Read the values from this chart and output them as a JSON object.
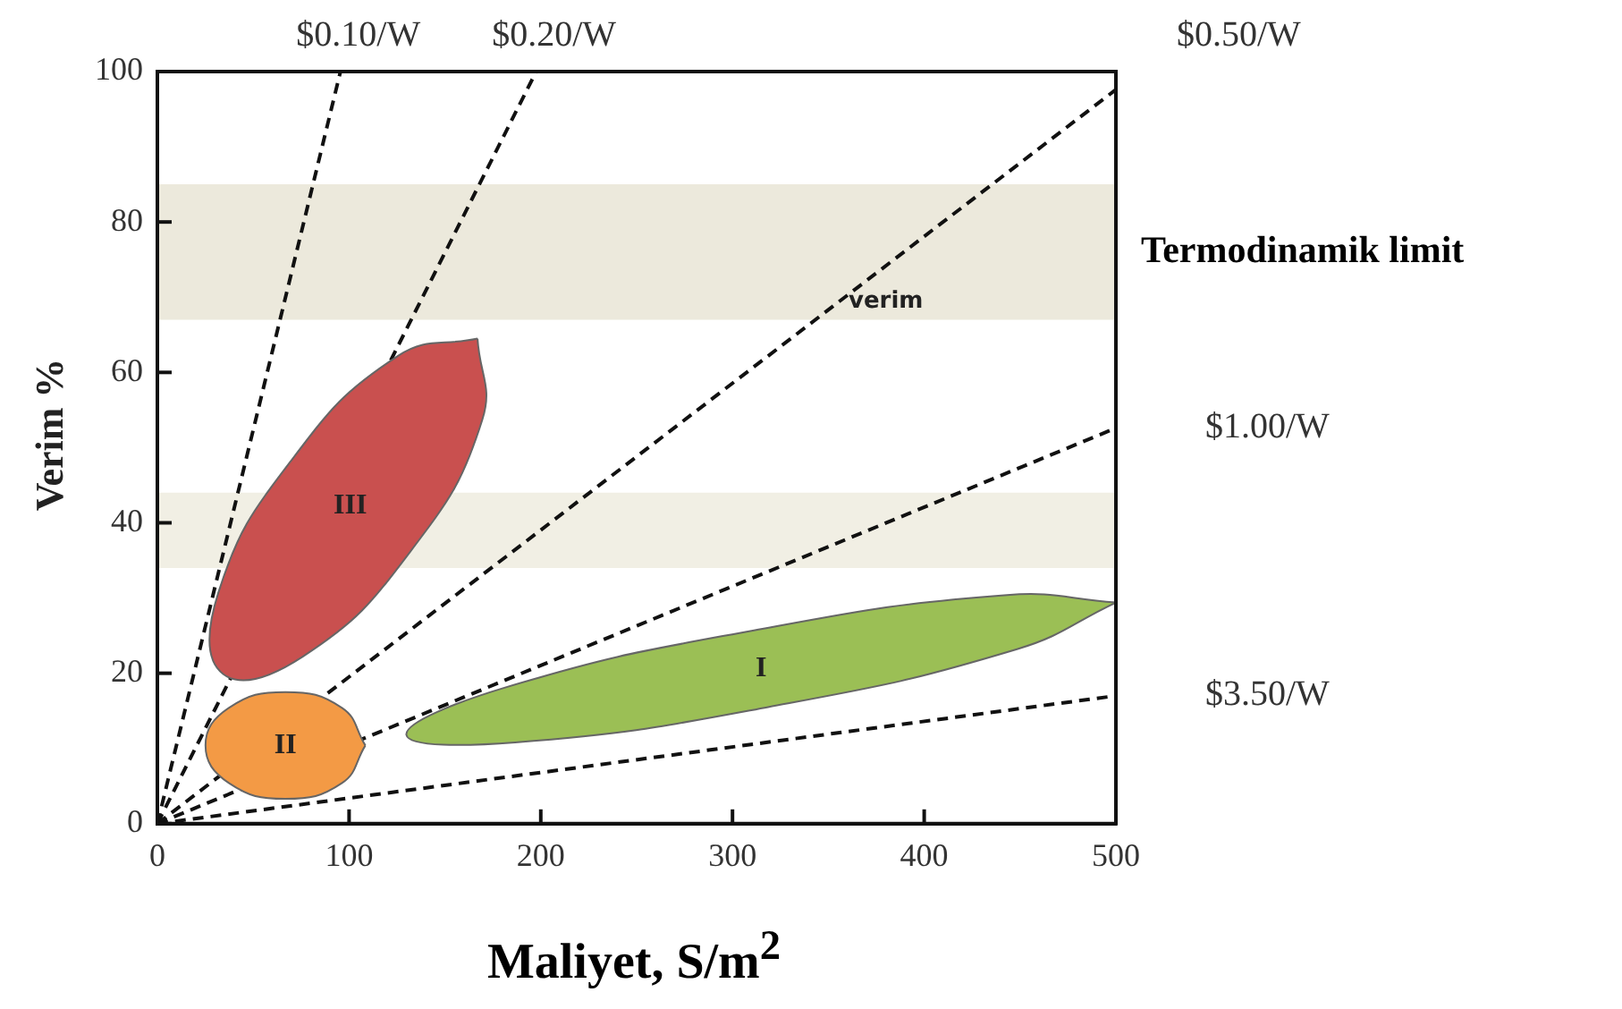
{
  "chart_data": {
    "type": "line",
    "xlabel": "Maliyet, S/m$^{2}$",
    "ylabel": "Verim %",
    "xlim": [
      0,
      500
    ],
    "ylim": [
      0,
      100
    ],
    "xticks": [
      0,
      100,
      200,
      300,
      400,
      500
    ],
    "yticks": [
      0,
      20,
      40,
      60,
      80,
      100
    ],
    "grid": false,
    "legend": false,
    "marker": "none",
    "bands": [
      {
        "axis": "y",
        "from": 67,
        "to": 85,
        "label": "Termodinamik limit",
        "color": "#ece9dc"
      },
      {
        "axis": "y",
        "from": 34,
        "to": 44,
        "label": null,
        "color": "#f1efe4"
      }
    ],
    "annotations": [
      "verim"
    ],
    "series": [
      {
        "name": "III",
        "type": "area",
        "color": "#c9504f",
        "x": [
          167,
          169.5,
          131.7,
          75.8,
          34.3,
          31.8,
          69.6,
          125.5,
          167
        ],
        "values": [
          64.5,
          53.7,
          36.1,
          22.2,
          19.9,
          30.7,
          48.2,
          62.2,
          64.5
        ]
      },
      {
        "name": "II",
        "type": "area",
        "color": "#f39a45",
        "x": [
          108.5,
          96.3,
          66.8,
          37.3,
          25.1,
          37.3,
          66.8,
          96.3,
          108.5
        ],
        "values": [
          10.4,
          15.4,
          17.5,
          15.4,
          10.4,
          5.4,
          3.3,
          5.4,
          10.4
        ]
      },
      {
        "name": "I",
        "type": "area",
        "color": "#9bbf55",
        "x": [
          500,
          448.4,
          318.6,
          186.6,
          129.9,
          181.4,
          311.2,
          443.2,
          500
        ],
        "values": [
          29.4,
          23.2,
          15.5,
          10.8,
          11.8,
          18.1,
          25.7,
          30.4,
          29.4
        ]
      },
      {
        "name": "$0.10/W",
        "color": "#111111",
        "line_style": "dashed",
        "x": [
          0,
          95.5
        ],
        "values": [
          0,
          100
        ]
      },
      {
        "name": "$0.20/W",
        "color": "#111111",
        "line_style": "dashed",
        "x": [
          0,
          197.6
        ],
        "values": [
          0,
          100
        ]
      },
      {
        "name": "$0.50/W",
        "color": "#111111",
        "line_style": "dashed",
        "x": [
          0,
          500
        ],
        "values": [
          0,
          97.6
        ]
      },
      {
        "name": "$1.00/W",
        "color": "#111111",
        "line_style": "dashed",
        "x": [
          0,
          500
        ],
        "values": [
          0,
          52.6
        ]
      },
      {
        "name": "$3.50/W",
        "color": "#111111",
        "line_style": "dashed",
        "x": [
          0,
          500
        ],
        "values": [
          0,
          17
        ]
      }
    ]
  }
}
